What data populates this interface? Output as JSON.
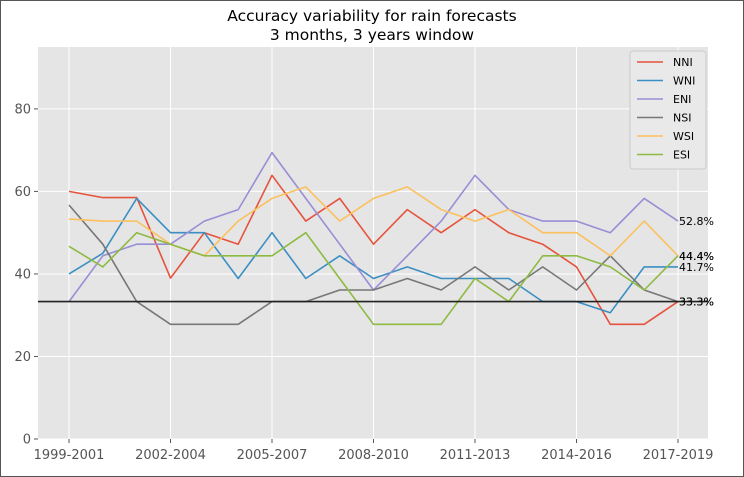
{
  "chart_data": {
    "type": "line",
    "title": "Accuracy variability for rain forecasts",
    "subtitle": "3 months, 3 years window",
    "xlabel": "",
    "ylabel": "",
    "x_tick_labels": [
      "1999-2001",
      "2002-2004",
      "2005-2007",
      "2008-2010",
      "2011-2013",
      "2014-2016",
      "2017-2019"
    ],
    "x_tick_indices": [
      0,
      3,
      6,
      9,
      12,
      15,
      18
    ],
    "y_ticks": [
      0,
      20,
      40,
      60,
      80
    ],
    "ylim": [
      0,
      95
    ],
    "grid": true,
    "legend_position": "top-right",
    "series": [
      {
        "name": "NNI",
        "color": "#e5533c",
        "values": [
          60.0,
          58.5,
          58.5,
          39.0,
          50.0,
          47.2,
          63.9,
          52.8,
          58.3,
          47.2,
          55.6,
          50.0,
          55.6,
          50.0,
          47.2,
          41.7,
          27.8,
          27.8,
          33.3
        ]
      },
      {
        "name": "WNI",
        "color": "#3b8fc3",
        "values": [
          40.0,
          45.0,
          58.3,
          50.0,
          50.0,
          38.9,
          50.0,
          38.9,
          44.4,
          38.9,
          41.7,
          38.9,
          38.9,
          38.9,
          33.3,
          33.3,
          30.6,
          41.7,
          41.7
        ]
      },
      {
        "name": "ENI",
        "color": "#988ed5",
        "values": [
          33.3,
          44.4,
          47.2,
          47.2,
          52.8,
          55.6,
          69.4,
          58.3,
          47.2,
          36.1,
          44.4,
          52.8,
          63.9,
          55.6,
          52.8,
          52.8,
          50.0,
          58.3,
          52.8
        ]
      },
      {
        "name": "NSI",
        "color": "#777777",
        "values": [
          56.7,
          47.2,
          33.3,
          27.8,
          27.8,
          27.8,
          33.3,
          33.3,
          36.1,
          36.1,
          38.9,
          36.1,
          41.7,
          36.1,
          41.7,
          36.1,
          44.4,
          36.1,
          33.3
        ]
      },
      {
        "name": "WSI",
        "color": "#fbc15e",
        "values": [
          53.3,
          52.8,
          52.8,
          47.2,
          44.4,
          52.8,
          58.3,
          61.1,
          52.8,
          58.3,
          61.1,
          55.6,
          52.8,
          55.6,
          50.0,
          50.0,
          44.4,
          52.8,
          44.4
        ]
      },
      {
        "name": "ESI",
        "color": "#8eba42",
        "values": [
          46.7,
          41.7,
          50.0,
          47.2,
          44.4,
          44.4,
          44.4,
          50.0,
          38.9,
          27.8,
          27.8,
          27.8,
          38.9,
          33.3,
          44.4,
          44.4,
          41.7,
          36.1,
          44.4
        ]
      }
    ],
    "reference_line": {
      "value": 33.3,
      "color": "#222222"
    },
    "end_labels": [
      "52.8%",
      "44.4%",
      "41.7%",
      "33.3%"
    ],
    "end_label_values": [
      52.8,
      44.4,
      41.7,
      33.3
    ],
    "end_label_duplicates": [
      "44.4%",
      "33.3%"
    ],
    "colors": {
      "plot_background": "#e5e5e5",
      "grid": "#ffffff",
      "axis_text": "#555555"
    }
  }
}
